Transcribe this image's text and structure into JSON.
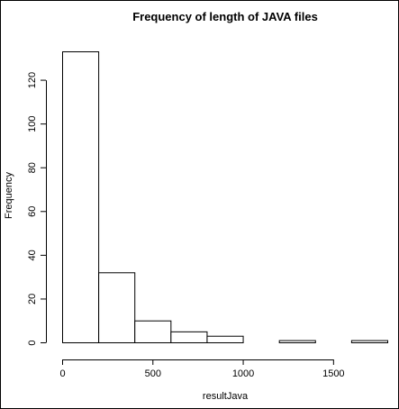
{
  "chart_data": {
    "type": "bar",
    "title": "Frequency of length of JAVA files",
    "xlabel": "resultJava",
    "ylabel": "Frequency",
    "bins": [
      {
        "from": 0,
        "to": 200,
        "count": 133
      },
      {
        "from": 200,
        "to": 400,
        "count": 32
      },
      {
        "from": 400,
        "to": 600,
        "count": 10
      },
      {
        "from": 600,
        "to": 800,
        "count": 5
      },
      {
        "from": 800,
        "to": 1000,
        "count": 3
      },
      {
        "from": 1000,
        "to": 1200,
        "count": 0
      },
      {
        "from": 1200,
        "to": 1400,
        "count": 1
      },
      {
        "from": 1400,
        "to": 1600,
        "count": 0
      },
      {
        "from": 1600,
        "to": 1800,
        "count": 1
      }
    ],
    "xlim": [
      0,
      1800
    ],
    "ylim": [
      0,
      133
    ],
    "x_ticks": [
      0,
      500,
      1000,
      1500
    ],
    "x_tick_labels": [
      "0",
      "500",
      "1000",
      "1500"
    ],
    "y_ticks": [
      0,
      20,
      40,
      60,
      80,
      100,
      120
    ],
    "y_tick_labels": [
      "0",
      "20",
      "40",
      "60",
      "80",
      "100",
      "120"
    ],
    "grid": false,
    "bar_fill": "#ffffff",
    "bar_stroke": "#000000"
  }
}
